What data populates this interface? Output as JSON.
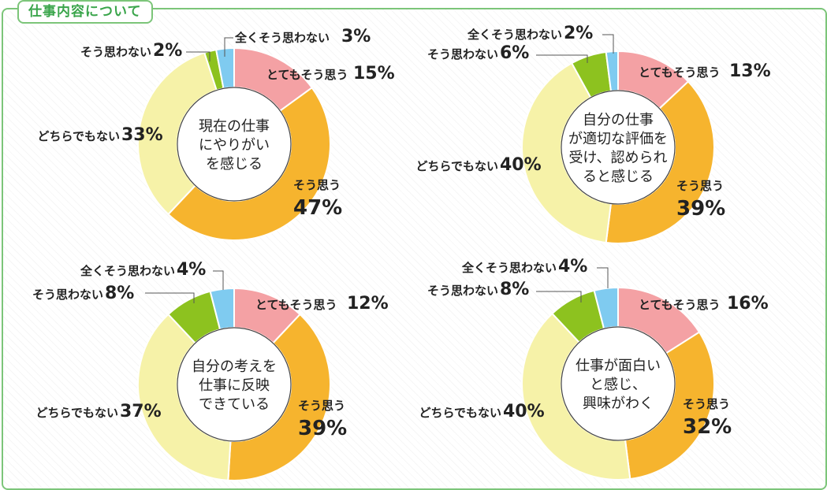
{
  "header": {
    "title": "仕事内容について"
  },
  "chart_data": [
    {
      "type": "pie",
      "center_text": [
        "現在の仕事",
        "にやりがい",
        "を感じる"
      ],
      "slices": [
        {
          "label": "とてもそう思う",
          "value": 15,
          "display": "15%",
          "color": "#f4a1a4"
        },
        {
          "label": "そう思う",
          "value": 47,
          "display": "47%",
          "color": "#f6b42e"
        },
        {
          "label": "どちらでもない",
          "value": 33,
          "display": "33%",
          "color": "#f6f2a8"
        },
        {
          "label": "そう思わない",
          "value": 2,
          "display": "2%",
          "color": "#8dc21f"
        },
        {
          "label": "全くそう思わない",
          "value": 3,
          "display": "3%",
          "color": "#7fcbf0"
        }
      ]
    },
    {
      "type": "pie",
      "center_text": [
        "自分の仕事",
        "が適切な評価を",
        "受け、認められ",
        "ると感じる"
      ],
      "slices": [
        {
          "label": "とてもそう思う",
          "value": 13,
          "display": "13%",
          "color": "#f4a1a4"
        },
        {
          "label": "そう思う",
          "value": 39,
          "display": "39%",
          "color": "#f6b42e"
        },
        {
          "label": "どちらでもない",
          "value": 40,
          "display": "40%",
          "color": "#f6f2a8"
        },
        {
          "label": "そう思わない",
          "value": 6,
          "display": "6%",
          "color": "#8dc21f"
        },
        {
          "label": "全くそう思わない",
          "value": 2,
          "display": "2%",
          "color": "#7fcbf0"
        }
      ]
    },
    {
      "type": "pie",
      "center_text": [
        "自分の考えを",
        "仕事に反映",
        "できている"
      ],
      "slices": [
        {
          "label": "とてもそう思う",
          "value": 12,
          "display": "12%",
          "color": "#f4a1a4"
        },
        {
          "label": "そう思う",
          "value": 39,
          "display": "39%",
          "color": "#f6b42e"
        },
        {
          "label": "どちらでもない",
          "value": 37,
          "display": "37%",
          "color": "#f6f2a8"
        },
        {
          "label": "そう思わない",
          "value": 8,
          "display": "8%",
          "color": "#8dc21f"
        },
        {
          "label": "全くそう思わない",
          "value": 4,
          "display": "4%",
          "color": "#7fcbf0"
        }
      ]
    },
    {
      "type": "pie",
      "center_text": [
        "仕事が面白い",
        "と感じ、",
        "興味がわく"
      ],
      "slices": [
        {
          "label": "とてもそう思う",
          "value": 16,
          "display": "16%",
          "color": "#f4a1a4"
        },
        {
          "label": "そう思う",
          "value": 32,
          "display": "32%",
          "color": "#f6b42e"
        },
        {
          "label": "どちらでもない",
          "value": 40,
          "display": "40%",
          "color": "#f6f2a8"
        },
        {
          "label": "そう思わない",
          "value": 8,
          "display": "8%",
          "color": "#8dc21f"
        },
        {
          "label": "全くそう思わない",
          "value": 4,
          "display": "4%",
          "color": "#7fcbf0"
        }
      ]
    }
  ]
}
